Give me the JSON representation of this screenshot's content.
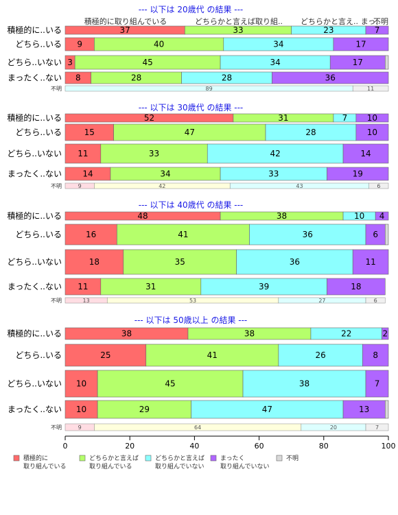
{
  "chart_data": {
    "type": "bar",
    "orientation": "horizontal",
    "stacked": true,
    "xlim": [
      0,
      100
    ],
    "x_ticks": [
      "0",
      "20",
      "40",
      "60",
      "80",
      "100"
    ],
    "top_labels": [
      "積極的に取り組んでいる",
      "どちらかと言えば取り組..",
      "どちらかと言え..",
      "まっ..",
      "不明"
    ],
    "colors": [
      "#FF6B6B",
      "#B5FF6B",
      "#8CFFFF",
      "#B066FF",
      "#D9D9D9"
    ],
    "legend": {
      "placement": "bottom",
      "items": [
        {
          "line1": "積極的に",
          "line2": "取り組んでいる"
        },
        {
          "line1": "どちらかと言えば",
          "line2": "取り組んでいる"
        },
        {
          "line1": "どちらかと言えば",
          "line2": "取り組んでいない"
        },
        {
          "line1": "まったく",
          "line2": "取り組んでいない"
        },
        {
          "line1": "不明",
          "line2": ""
        }
      ]
    },
    "panels": [
      {
        "title": "--- 以下は 20歳代 の結果 ---",
        "rows": [
          {
            "label": "積極的に..いる",
            "values": [
              37,
              33,
              23,
              7,
              0
            ]
          },
          {
            "label": "どちら..いる",
            "values": [
              9,
              40,
              34,
              17,
              0
            ]
          },
          {
            "label": "どちら..いない",
            "values": [
              3,
              45,
              34,
              17,
              1
            ]
          },
          {
            "label": "まったく..ない",
            "values": [
              8,
              28,
              28,
              36,
              0
            ]
          }
        ],
        "unknown": {
          "label": "不明",
          "values": [
            0,
            0,
            89,
            0,
            11
          ]
        }
      },
      {
        "title": "--- 以下は 30歳代 の結果 ---",
        "rows": [
          {
            "label": "積極的に..いる",
            "values": [
              52,
              31,
              7,
              10,
              0
            ]
          },
          {
            "label": "どちら..いる",
            "values": [
              15,
              47,
              28,
              10,
              0
            ]
          },
          {
            "label": "どちら..いない",
            "values": [
              11,
              33,
              42,
              14,
              0
            ]
          },
          {
            "label": "まったく..ない",
            "values": [
              14,
              34,
              33,
              19,
              0
            ]
          }
        ],
        "unknown": {
          "label": "不明",
          "values": [
            9,
            42,
            43,
            0,
            6
          ]
        }
      },
      {
        "title": "--- 以下は 40歳代 の結果 ---",
        "rows": [
          {
            "label": "積極的に..いる",
            "values": [
              48,
              38,
              10,
              4,
              0
            ]
          },
          {
            "label": "どちら..いる",
            "values": [
              16,
              41,
              36,
              6,
              1
            ]
          },
          {
            "label": "どちら..いない",
            "values": [
              18,
              35,
              36,
              11,
              0
            ]
          },
          {
            "label": "まったく..ない",
            "values": [
              11,
              31,
              39,
              18,
              0
            ]
          }
        ],
        "unknown": {
          "label": "不明",
          "values": [
            13,
            53,
            27,
            0,
            6
          ]
        }
      },
      {
        "title": "--- 以下は 50歳以上 の結果 ---",
        "rows": [
          {
            "label": "積極的に..いる",
            "values": [
              38,
              38,
              22,
              2,
              0
            ]
          },
          {
            "label": "どちら..いる",
            "values": [
              25,
              41,
              26,
              8,
              0
            ]
          },
          {
            "label": "どちら..いない",
            "values": [
              10,
              45,
              38,
              7,
              0
            ]
          },
          {
            "label": "まったく..ない",
            "values": [
              10,
              29,
              47,
              13,
              1
            ]
          }
        ],
        "unknown": {
          "label": "不明",
          "values": [
            9,
            64,
            20,
            0,
            7
          ]
        }
      }
    ]
  }
}
